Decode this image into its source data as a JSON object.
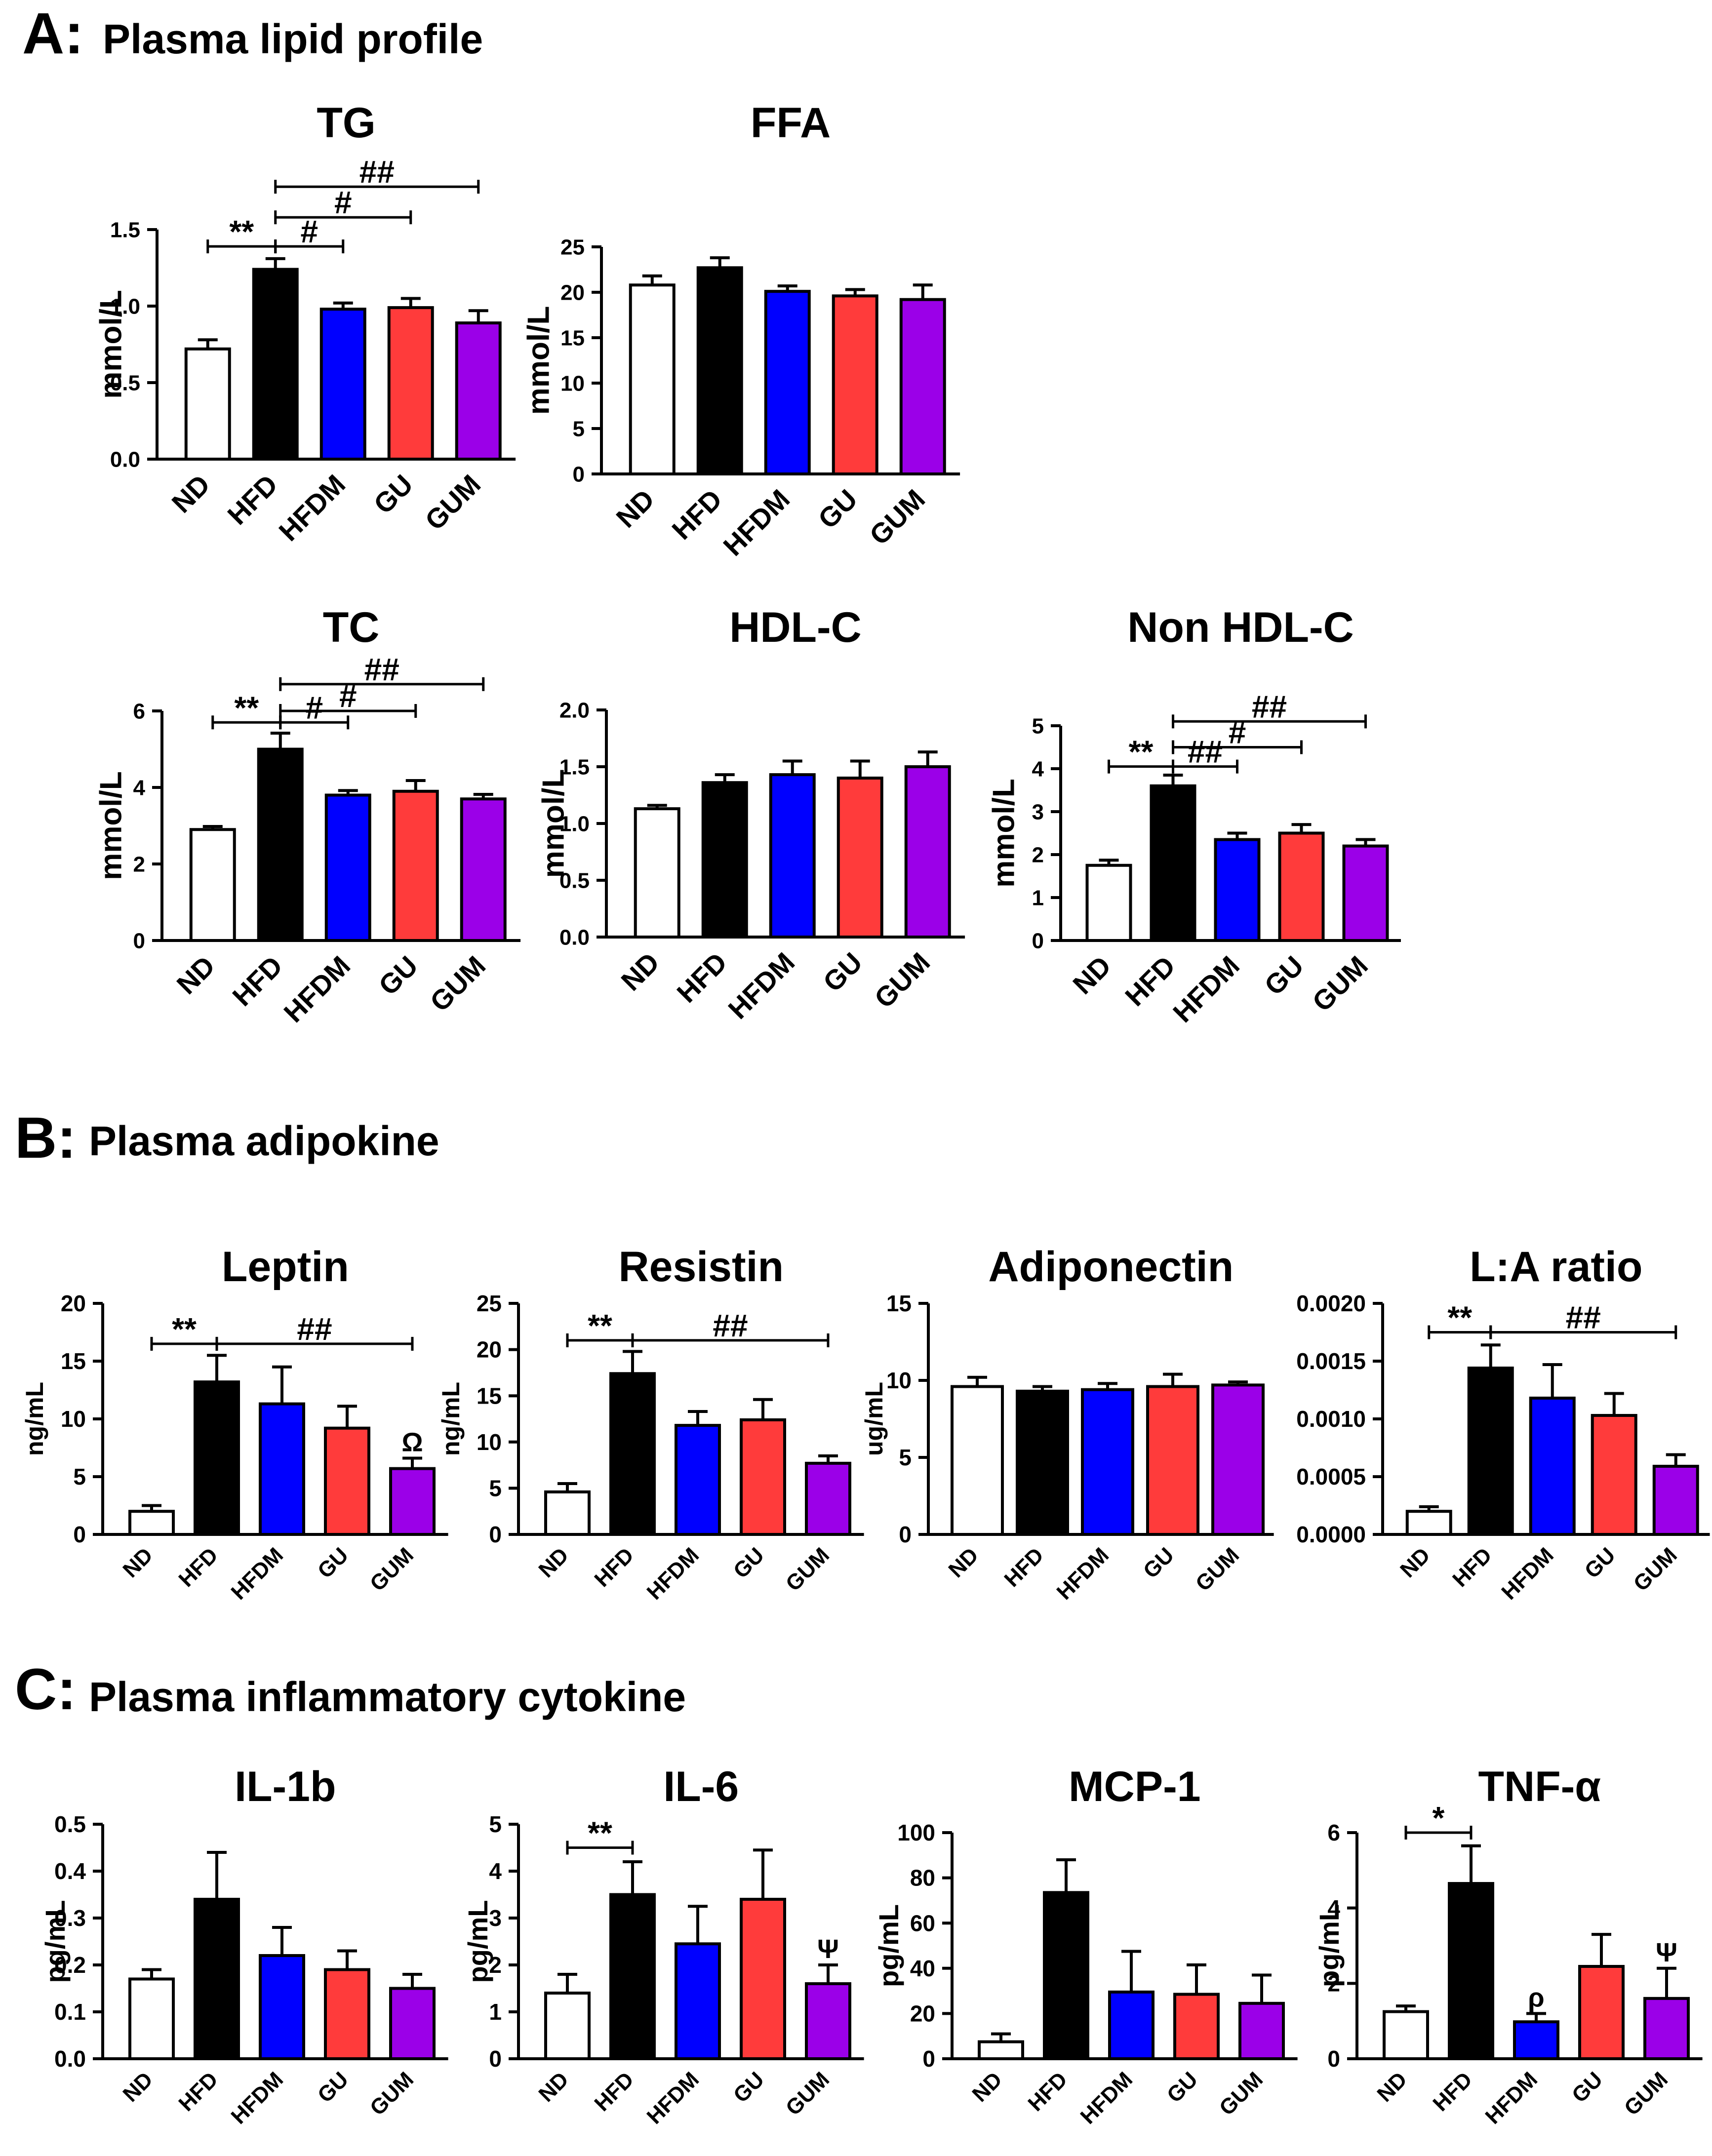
{
  "colors": {
    "ND": "#ffffff",
    "HFD": "#000000",
    "HFDM": "#0000ff",
    "GU": "#ff3b3b",
    "GUM": "#9b00e8",
    "stroke": "#000000"
  },
  "sections": [
    {
      "id": "A",
      "letter": "A:",
      "title": "Plasma lipid profile"
    },
    {
      "id": "B",
      "letter": "B:",
      "title": "Plasma adipokine"
    },
    {
      "id": "C",
      "letter": "C:",
      "title": "Plasma inflammatory cytokine"
    }
  ],
  "chart_data": [
    {
      "id": "tg",
      "type": "bar",
      "title": "TG",
      "ylabel": "mmol/L",
      "categories": [
        "ND",
        "HFD",
        "HFDM",
        "GU",
        "GUM"
      ],
      "values": [
        0.72,
        1.24,
        0.98,
        0.99,
        0.89
      ],
      "errors": [
        0.06,
        0.07,
        0.04,
        0.06,
        0.08
      ],
      "ylim": [
        0,
        1.5
      ],
      "ticks": [
        0,
        0.5,
        1,
        1.5
      ],
      "tick_labels": [
        "0.0",
        "0.5",
        "1.0",
        "1.5"
      ],
      "annotations": [
        {
          "from": 0,
          "to": 1,
          "y": 1.39,
          "label": "**"
        },
        {
          "from": 1,
          "to": 2,
          "y": 1.39,
          "label": "#"
        },
        {
          "from": 1,
          "to": 3,
          "y": 1.58,
          "label": "#"
        },
        {
          "from": 1,
          "to": 4,
          "y": 1.78,
          "label": "##"
        }
      ],
      "bar_labels": []
    },
    {
      "id": "ffa",
      "type": "bar",
      "title": "FFA",
      "ylabel": "mmol/L",
      "categories": [
        "ND",
        "HFD",
        "HFDM",
        "GU",
        "GUM"
      ],
      "values": [
        20.8,
        22.7,
        20.1,
        19.6,
        19.2
      ],
      "errors": [
        1.0,
        1.1,
        0.6,
        0.7,
        1.6
      ],
      "ylim": [
        0,
        25
      ],
      "ticks": [
        0,
        5,
        10,
        15,
        20,
        25
      ],
      "tick_labels": [
        "0",
        "5",
        "10",
        "15",
        "20",
        "25"
      ],
      "annotations": [],
      "bar_labels": []
    },
    {
      "id": "tc",
      "type": "bar",
      "title": "TC",
      "ylabel": "mmol/L",
      "categories": [
        "ND",
        "HFD",
        "HFDM",
        "GU",
        "GUM"
      ],
      "values": [
        2.9,
        5.0,
        3.8,
        3.9,
        3.7
      ],
      "errors": [
        0.08,
        0.42,
        0.12,
        0.28,
        0.12
      ],
      "ylim": [
        0,
        6
      ],
      "ticks": [
        0,
        2,
        4,
        6
      ],
      "tick_labels": [
        "0",
        "2",
        "4",
        "6"
      ],
      "annotations": [
        {
          "from": 0,
          "to": 1,
          "y": 5.7,
          "label": "**"
        },
        {
          "from": 1,
          "to": 2,
          "y": 5.7,
          "label": "#"
        },
        {
          "from": 1,
          "to": 3,
          "y": 6.0,
          "label": "#"
        },
        {
          "from": 1,
          "to": 4,
          "y": 6.7,
          "label": "##"
        }
      ],
      "bar_labels": []
    },
    {
      "id": "hdl",
      "type": "bar",
      "title": "HDL-C",
      "ylabel": "mmol/L",
      "categories": [
        "ND",
        "HFD",
        "HFDM",
        "GU",
        "GUM"
      ],
      "values": [
        1.13,
        1.36,
        1.43,
        1.4,
        1.5
      ],
      "errors": [
        0.03,
        0.07,
        0.12,
        0.15,
        0.13
      ],
      "ylim": [
        0,
        2
      ],
      "ticks": [
        0,
        0.5,
        1,
        1.5,
        2
      ],
      "tick_labels": [
        "0.0",
        "0.5",
        "1.0",
        "1.5",
        "2.0"
      ],
      "annotations": [],
      "bar_labels": []
    },
    {
      "id": "nonhdl",
      "type": "bar",
      "title": "Non HDL-C",
      "ylabel": "mmol/L",
      "categories": [
        "ND",
        "HFD",
        "HFDM",
        "GU",
        "GUM"
      ],
      "values": [
        1.75,
        3.6,
        2.35,
        2.5,
        2.2
      ],
      "errors": [
        0.12,
        0.25,
        0.15,
        0.2,
        0.15
      ],
      "ylim": [
        0,
        5
      ],
      "ticks": [
        0,
        1,
        2,
        3,
        4,
        5
      ],
      "tick_labels": [
        "0",
        "1",
        "2",
        "3",
        "4",
        "5"
      ],
      "annotations": [
        {
          "from": 0,
          "to": 1,
          "y": 4.05,
          "label": "**"
        },
        {
          "from": 1,
          "to": 2,
          "y": 4.05,
          "label": "##"
        },
        {
          "from": 1,
          "to": 3,
          "y": 4.5,
          "label": "#"
        },
        {
          "from": 1,
          "to": 4,
          "y": 5.1,
          "label": "##"
        }
      ],
      "bar_labels": []
    },
    {
      "id": "leptin",
      "type": "bar",
      "title": "Leptin",
      "ylabel": "ng/mL",
      "categories": [
        "ND",
        "HFD",
        "HFDM",
        "GU",
        "GUM"
      ],
      "values": [
        2.0,
        13.2,
        11.3,
        9.2,
        5.7
      ],
      "errors": [
        0.5,
        2.3,
        3.2,
        1.9,
        0.9
      ],
      "ylim": [
        0,
        20
      ],
      "ticks": [
        0,
        5,
        10,
        15,
        20
      ],
      "tick_labels": [
        "0",
        "5",
        "10",
        "15",
        "20"
      ],
      "annotations": [
        {
          "from": 0,
          "to": 1,
          "y": 16.5,
          "label": "**"
        },
        {
          "from": 1,
          "to": 4,
          "y": 16.5,
          "label": "##"
        }
      ],
      "bar_labels": [
        {
          "index": 4,
          "label": "Ω"
        }
      ]
    },
    {
      "id": "resistin",
      "type": "bar",
      "title": "Resistin",
      "ylabel": "ng/mL",
      "categories": [
        "ND",
        "HFD",
        "HFDM",
        "GU",
        "GUM"
      ],
      "values": [
        4.6,
        17.4,
        11.8,
        12.4,
        7.7
      ],
      "errors": [
        0.9,
        2.4,
        1.5,
        2.2,
        0.8
      ],
      "ylim": [
        0,
        25
      ],
      "ticks": [
        0,
        5,
        10,
        15,
        20,
        25
      ],
      "tick_labels": [
        "0",
        "5",
        "10",
        "15",
        "20",
        "25"
      ],
      "annotations": [
        {
          "from": 0,
          "to": 1,
          "y": 21.0,
          "label": "**"
        },
        {
          "from": 1,
          "to": 4,
          "y": 21.0,
          "label": "##"
        }
      ],
      "bar_labels": []
    },
    {
      "id": "adiponectin",
      "type": "bar",
      "title": "Adiponectin",
      "ylabel": "ug/mL",
      "categories": [
        "ND",
        "HFD",
        "HFDM",
        "GU",
        "GUM"
      ],
      "values": [
        9.6,
        9.3,
        9.4,
        9.6,
        9.7
      ],
      "errors": [
        0.6,
        0.3,
        0.4,
        0.8,
        0.2
      ],
      "ylim": [
        0,
        15
      ],
      "ticks": [
        0,
        5,
        10,
        15
      ],
      "tick_labels": [
        "0",
        "5",
        "10",
        "15"
      ],
      "annotations": [],
      "bar_labels": []
    },
    {
      "id": "laratio",
      "type": "bar",
      "title": "L:A ratio",
      "ylabel": "",
      "categories": [
        "ND",
        "HFD",
        "HFDM",
        "GU",
        "GUM"
      ],
      "values": [
        0.0002,
        0.00144,
        0.00118,
        0.00103,
        0.00059
      ],
      "errors": [
        4e-05,
        0.0002,
        0.00029,
        0.00019,
        0.0001
      ],
      "ylim": [
        0,
        0.002
      ],
      "ticks": [
        0,
        0.0005,
        0.001,
        0.0015,
        0.002
      ],
      "tick_labels": [
        "0.0000",
        "0.0005",
        "0.0010",
        "0.0015",
        "0.0020"
      ],
      "annotations": [
        {
          "from": 0,
          "to": 1,
          "y": 0.00175,
          "label": "**"
        },
        {
          "from": 1,
          "to": 4,
          "y": 0.00175,
          "label": "##"
        }
      ],
      "bar_labels": []
    },
    {
      "id": "il1b",
      "type": "bar",
      "title": "IL-1b",
      "ylabel": "pg/mL",
      "categories": [
        "ND",
        "HFD",
        "HFDM",
        "GU",
        "GUM"
      ],
      "values": [
        0.17,
        0.34,
        0.22,
        0.19,
        0.15
      ],
      "errors": [
        0.02,
        0.1,
        0.06,
        0.04,
        0.03
      ],
      "ylim": [
        0,
        0.5
      ],
      "ticks": [
        0,
        0.1,
        0.2,
        0.3,
        0.4,
        0.5
      ],
      "tick_labels": [
        "0.0",
        "0.1",
        "0.2",
        "0.3",
        "0.4",
        "0.5"
      ],
      "annotations": [],
      "bar_labels": []
    },
    {
      "id": "il6",
      "type": "bar",
      "title": "IL-6",
      "ylabel": "pg/mL",
      "categories": [
        "ND",
        "HFD",
        "HFDM",
        "GU",
        "GUM"
      ],
      "values": [
        1.4,
        3.5,
        2.45,
        3.4,
        1.6
      ],
      "errors": [
        0.4,
        0.7,
        0.8,
        1.05,
        0.4
      ],
      "ylim": [
        0,
        5
      ],
      "ticks": [
        0,
        1,
        2,
        3,
        4,
        5
      ],
      "tick_labels": [
        "0",
        "1",
        "2",
        "3",
        "4",
        "5"
      ],
      "annotations": [
        {
          "from": 0,
          "to": 1,
          "y": 4.5,
          "label": "**"
        }
      ],
      "bar_labels": [
        {
          "index": 4,
          "label": "Ψ"
        }
      ]
    },
    {
      "id": "mcp1",
      "type": "bar",
      "title": "MCP-1",
      "ylabel": "pg/mL",
      "categories": [
        "ND",
        "HFD",
        "HFDM",
        "GU",
        "GUM"
      ],
      "values": [
        7.5,
        73.5,
        29.5,
        28.5,
        24.5
      ],
      "errors": [
        3.5,
        14.5,
        18,
        13,
        12.5
      ],
      "ylim": [
        0,
        100
      ],
      "ticks": [
        0,
        20,
        40,
        60,
        80,
        100
      ],
      "tick_labels": [
        "0",
        "20",
        "40",
        "60",
        "80",
        "100"
      ],
      "annotations": [],
      "bar_labels": []
    },
    {
      "id": "tnfa",
      "type": "bar",
      "title": "TNF-α",
      "ylabel": "pg/mL",
      "categories": [
        "ND",
        "HFD",
        "HFDM",
        "GU",
        "GUM"
      ],
      "values": [
        1.25,
        4.65,
        0.98,
        2.45,
        1.6
      ],
      "errors": [
        0.15,
        1.0,
        0.22,
        0.85,
        0.8
      ],
      "ylim": [
        0,
        6
      ],
      "ticks": [
        0,
        2,
        4,
        6
      ],
      "tick_labels": [
        "0",
        "2",
        "4",
        "6"
      ],
      "annotations": [
        {
          "from": 0,
          "to": 1,
          "y": 6.0,
          "label": "*"
        }
      ],
      "bar_labels": [
        {
          "index": 2,
          "label": "ρ"
        },
        {
          "index": 4,
          "label": "Ψ"
        }
      ]
    }
  ]
}
